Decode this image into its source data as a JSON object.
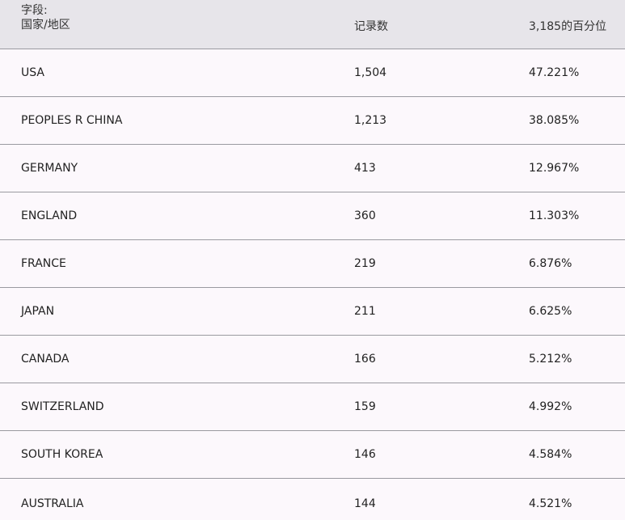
{
  "header": {
    "field_label": "字段:",
    "field_name": "国家/地区",
    "count_label": "记录数",
    "pct_label": "3,185的百分位"
  },
  "rows": [
    {
      "country": "USA",
      "count": "1,504",
      "pct": "47.221%"
    },
    {
      "country": "PEOPLES R CHINA",
      "count": "1,213",
      "pct": "38.085%"
    },
    {
      "country": "GERMANY",
      "count": "413",
      "pct": "12.967%"
    },
    {
      "country": "ENGLAND",
      "count": "360",
      "pct": "11.303%"
    },
    {
      "country": "FRANCE",
      "count": "219",
      "pct": "6.876%"
    },
    {
      "country": "JAPAN",
      "count": "211",
      "pct": "6.625%"
    },
    {
      "country": "CANADA",
      "count": "166",
      "pct": "5.212%"
    },
    {
      "country": "SWITZERLAND",
      "count": "159",
      "pct": "4.992%"
    },
    {
      "country": "SOUTH KOREA",
      "count": "146",
      "pct": "4.584%"
    },
    {
      "country": "AUSTRALIA",
      "count": "144",
      "pct": "4.521%"
    }
  ],
  "colors": {
    "header_bg": "#e7e5ea",
    "row_bg": "#fcf8fc",
    "divider": "#9a9aa0"
  }
}
